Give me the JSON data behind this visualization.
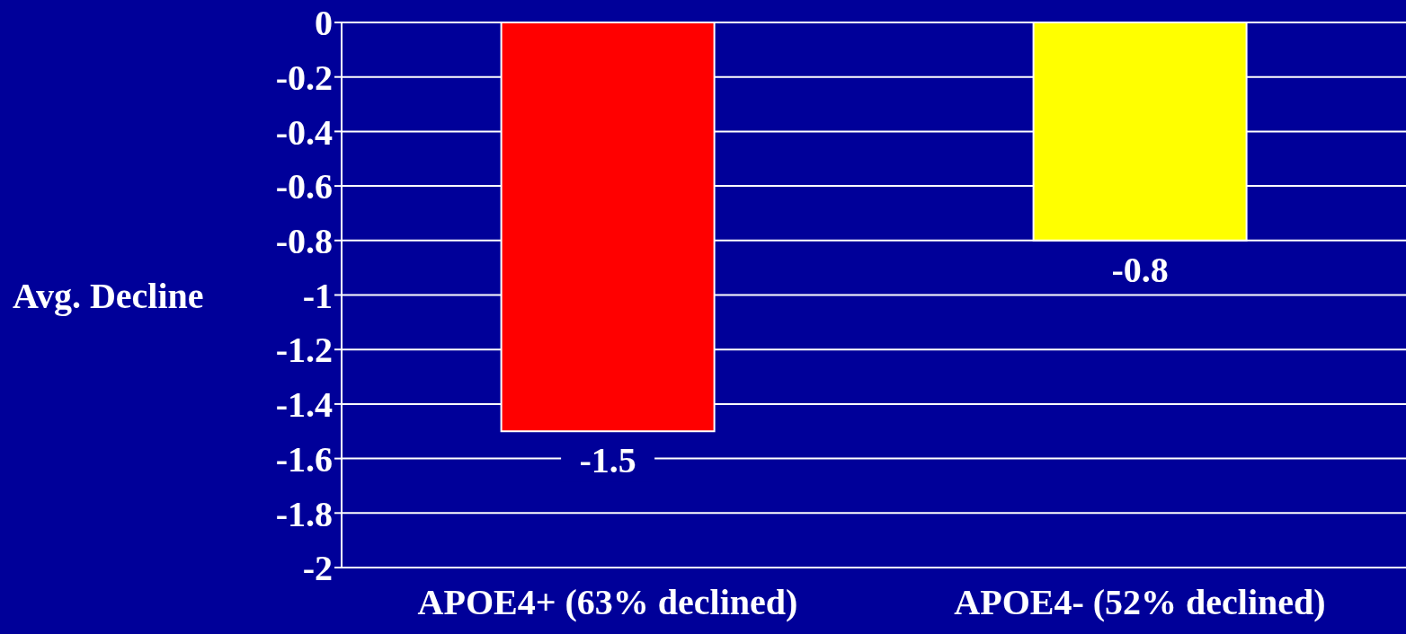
{
  "chart_data": {
    "type": "bar",
    "ylabel": "Avg. Decline",
    "categories": [
      "APOE4+ (63% declined)",
      "APOE4- (52% declined)"
    ],
    "values": [
      -1.5,
      -0.8
    ],
    "colors": [
      "#ff0000",
      "#ffff00"
    ],
    "ylim": [
      -2,
      0
    ],
    "yticks": [
      0,
      -0.2,
      -0.4,
      -0.6,
      -0.8,
      -1,
      -1.2,
      -1.4,
      -1.6,
      -1.8,
      -2
    ],
    "grid": "y",
    "data_labels": true
  }
}
